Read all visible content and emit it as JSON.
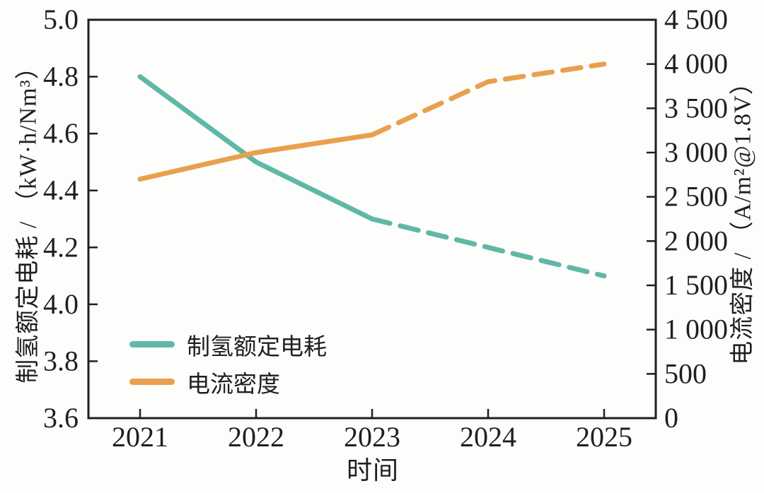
{
  "chart_data": {
    "type": "line",
    "title": "",
    "xlabel": "时间",
    "x": [
      2021,
      2022,
      2023,
      2024,
      2025
    ],
    "x_tick_labels": [
      "2021",
      "2022",
      "2023",
      "2024",
      "2025"
    ],
    "left_axis": {
      "label": "制氢额定电耗 / （kW·h/Nm³）",
      "lim": [
        3.6,
        5.0
      ],
      "tick_values": [
        5.0,
        4.8,
        4.6,
        4.4,
        4.2,
        4.0,
        3.8,
        3.6
      ],
      "tick_labels": [
        "5.0",
        "4.8",
        "4.6",
        "4.4",
        "4.2",
        "4.0",
        "3.8",
        "3.6"
      ]
    },
    "right_axis": {
      "label": "电流密度 / （A/m²@1.8V）",
      "lim": [
        0,
        4500
      ],
      "tick_values": [
        4500,
        4000,
        3500,
        3000,
        2500,
        2000,
        1500,
        1000,
        500,
        0
      ],
      "tick_labels": [
        "4 500",
        "4 000",
        "3 500",
        "3 000",
        "2 500",
        "2 000",
        "1 500",
        "1 000",
        "500",
        "0"
      ]
    },
    "series": [
      {
        "name": "制氢额定电耗",
        "axis": "left",
        "color": "#5fb8a5",
        "values": [
          4.8,
          4.5,
          4.3,
          4.2,
          4.1
        ],
        "solid_until_x": 2023,
        "style": "solid-then-dashed"
      },
      {
        "name": "电流密度",
        "axis": "right",
        "color": "#e9a04d",
        "values": [
          2700,
          3000,
          3200,
          3800,
          4000
        ],
        "solid_until_x": 2023,
        "style": "solid-then-dashed"
      }
    ],
    "legend_position": "lower-left",
    "grid": false,
    "frame_color": "#1f1f1f"
  }
}
